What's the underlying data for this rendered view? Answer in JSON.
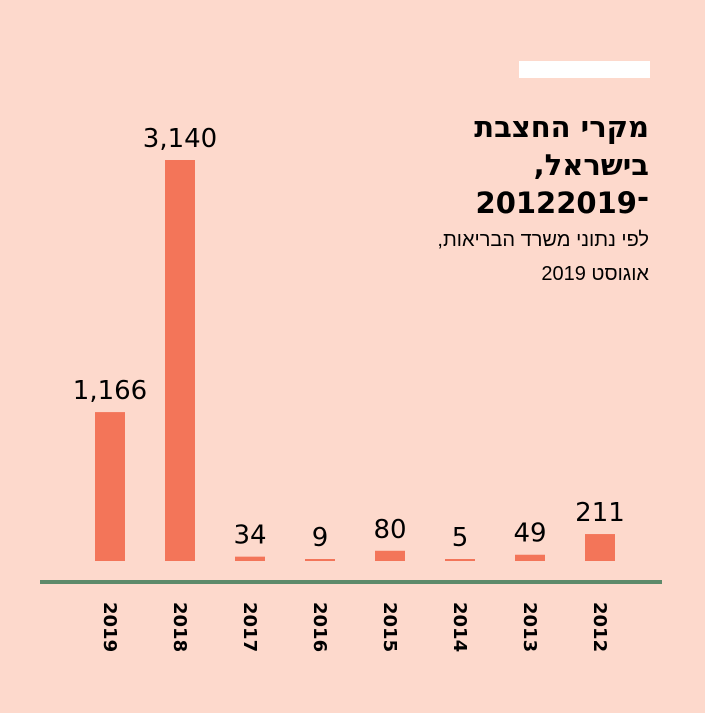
{
  "title": {
    "line1": "מקרי החצבת",
    "line2": "בישראל,",
    "line3": "2012־2019"
  },
  "subtitle": {
    "line1": "לפי נתוני משרד הבריאות,",
    "line2": "אוגוסט 2019"
  },
  "colors": {
    "background": "#fdd9cc",
    "bar": "#f37559",
    "axis": "#5e8a6a"
  },
  "chart_data": {
    "type": "bar",
    "categories": [
      "2019",
      "2018",
      "2017",
      "2016",
      "2015",
      "2014",
      "2013",
      "2012"
    ],
    "values": [
      1166,
      3140,
      34,
      9,
      80,
      5,
      49,
      211
    ],
    "value_labels": [
      "1,166",
      "3,140",
      "34",
      "9",
      "80",
      "5",
      "49",
      "211"
    ],
    "ylim": [
      0,
      3140
    ],
    "grid": false,
    "legend": "none"
  }
}
